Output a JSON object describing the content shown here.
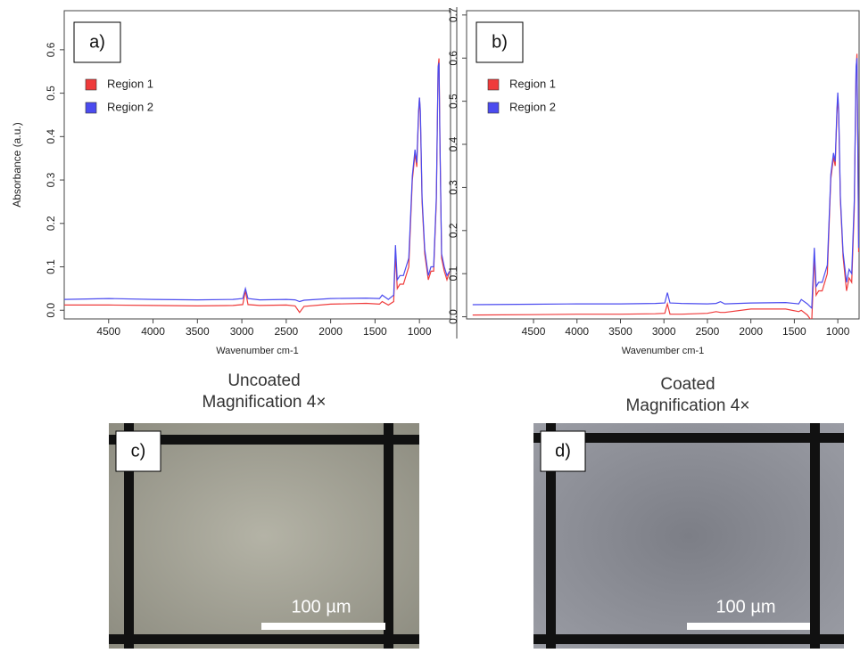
{
  "chart_data": [
    {
      "type": "line",
      "panel_label": "a)",
      "x_label": "Wavenumber cm-1",
      "y_label": "Absorbance (a.u.)",
      "x": [
        5000,
        4500,
        4000,
        3500,
        3100,
        2990,
        2960,
        2930,
        2800,
        2500,
        2400,
        2350,
        2300,
        2000,
        1600,
        1450,
        1420,
        1350,
        1290,
        1270,
        1250,
        1220,
        1180,
        1120,
        1080,
        1050,
        1030,
        1010,
        1000,
        990,
        970,
        940,
        900,
        870,
        840,
        810,
        790,
        780,
        770,
        750,
        720,
        690,
        660
      ],
      "series": [
        {
          "name": "Region 1",
          "color": "#ef3b3b",
          "values": [
            0.012,
            0.012,
            0.011,
            0.01,
            0.011,
            0.013,
            0.045,
            0.013,
            0.011,
            0.012,
            0.01,
            -0.005,
            0.009,
            0.014,
            0.016,
            0.014,
            0.02,
            0.012,
            0.02,
            0.13,
            0.05,
            0.06,
            0.06,
            0.1,
            0.3,
            0.36,
            0.33,
            0.45,
            0.49,
            0.45,
            0.25,
            0.13,
            0.07,
            0.09,
            0.09,
            0.25,
            0.56,
            0.58,
            0.4,
            0.12,
            0.09,
            0.07,
            0.09
          ]
        },
        {
          "name": "Region 2",
          "color": "#4b4bef",
          "values": [
            0.025,
            0.027,
            0.025,
            0.024,
            0.025,
            0.027,
            0.05,
            0.027,
            0.024,
            0.025,
            0.024,
            0.02,
            0.023,
            0.027,
            0.028,
            0.027,
            0.035,
            0.025,
            0.035,
            0.15,
            0.07,
            0.08,
            0.08,
            0.12,
            0.31,
            0.37,
            0.34,
            0.46,
            0.49,
            0.46,
            0.26,
            0.14,
            0.08,
            0.1,
            0.1,
            0.26,
            0.56,
            0.57,
            0.39,
            0.13,
            0.1,
            0.08,
            0.09
          ]
        }
      ],
      "xlim": [
        5000,
        650
      ],
      "xticks": [
        4500,
        4000,
        3500,
        3000,
        2500,
        2000,
        1500,
        1000
      ],
      "ylim": [
        -0.02,
        0.69
      ],
      "yticks": [
        {
          "value": 0,
          "label": "0.0"
        },
        0.1,
        0.2,
        0.3,
        0.4,
        0.5,
        0.6
      ],
      "legend": "upper left"
    },
    {
      "type": "line",
      "panel_label": "b)",
      "x_label": "Wavenumber cm-1",
      "x": [
        5200,
        4500,
        4000,
        3500,
        3100,
        2990,
        2960,
        2930,
        2800,
        2500,
        2400,
        2350,
        2300,
        2000,
        1600,
        1450,
        1420,
        1350,
        1300,
        1270,
        1250,
        1220,
        1180,
        1120,
        1080,
        1050,
        1030,
        1010,
        1000,
        990,
        970,
        940,
        900,
        870,
        840,
        810,
        790,
        780,
        770,
        760
      ],
      "series": [
        {
          "name": "Region 1",
          "color": "#ef3b3b",
          "values": [
            0.004,
            0.005,
            0.006,
            0.006,
            0.007,
            0.008,
            0.03,
            0.006,
            0.006,
            0.008,
            0.012,
            0.01,
            0.01,
            0.018,
            0.018,
            0.012,
            0.015,
            0.004,
            -0.01,
            0.14,
            0.05,
            0.06,
            0.06,
            0.1,
            0.32,
            0.37,
            0.35,
            0.47,
            0.51,
            0.47,
            0.27,
            0.14,
            0.06,
            0.09,
            0.08,
            0.25,
            0.57,
            0.61,
            0.42,
            0.15
          ]
        },
        {
          "name": "Region 2",
          "color": "#4b4bef",
          "values": [
            0.028,
            0.029,
            0.03,
            0.03,
            0.031,
            0.032,
            0.056,
            0.032,
            0.031,
            0.03,
            0.031,
            0.035,
            0.03,
            0.032,
            0.033,
            0.03,
            0.04,
            0.03,
            0.02,
            0.16,
            0.07,
            0.08,
            0.08,
            0.12,
            0.33,
            0.38,
            0.36,
            0.48,
            0.52,
            0.48,
            0.28,
            0.15,
            0.08,
            0.11,
            0.1,
            0.27,
            0.58,
            0.6,
            0.42,
            0.16
          ]
        }
      ],
      "xlim": [
        5270,
        755
      ],
      "xticks": [
        4500,
        4000,
        3500,
        3000,
        2500,
        2000,
        1500,
        1000
      ],
      "ylim": [
        -0.005,
        0.71
      ],
      "yticks": [
        {
          "value": 0,
          "label": "0.0"
        },
        0.1,
        0.2,
        0.3,
        0.4,
        0.5,
        0.6,
        0.7
      ],
      "legend": "upper left"
    }
  ],
  "images": [
    {
      "title": "Uncoated",
      "subtitle": "Magnification 4×",
      "panel_label": "c)",
      "scale_bar": "100 µm"
    },
    {
      "title": "Coated",
      "subtitle": "Magnification 4×",
      "panel_label": "d)",
      "scale_bar": "100 µm"
    }
  ]
}
